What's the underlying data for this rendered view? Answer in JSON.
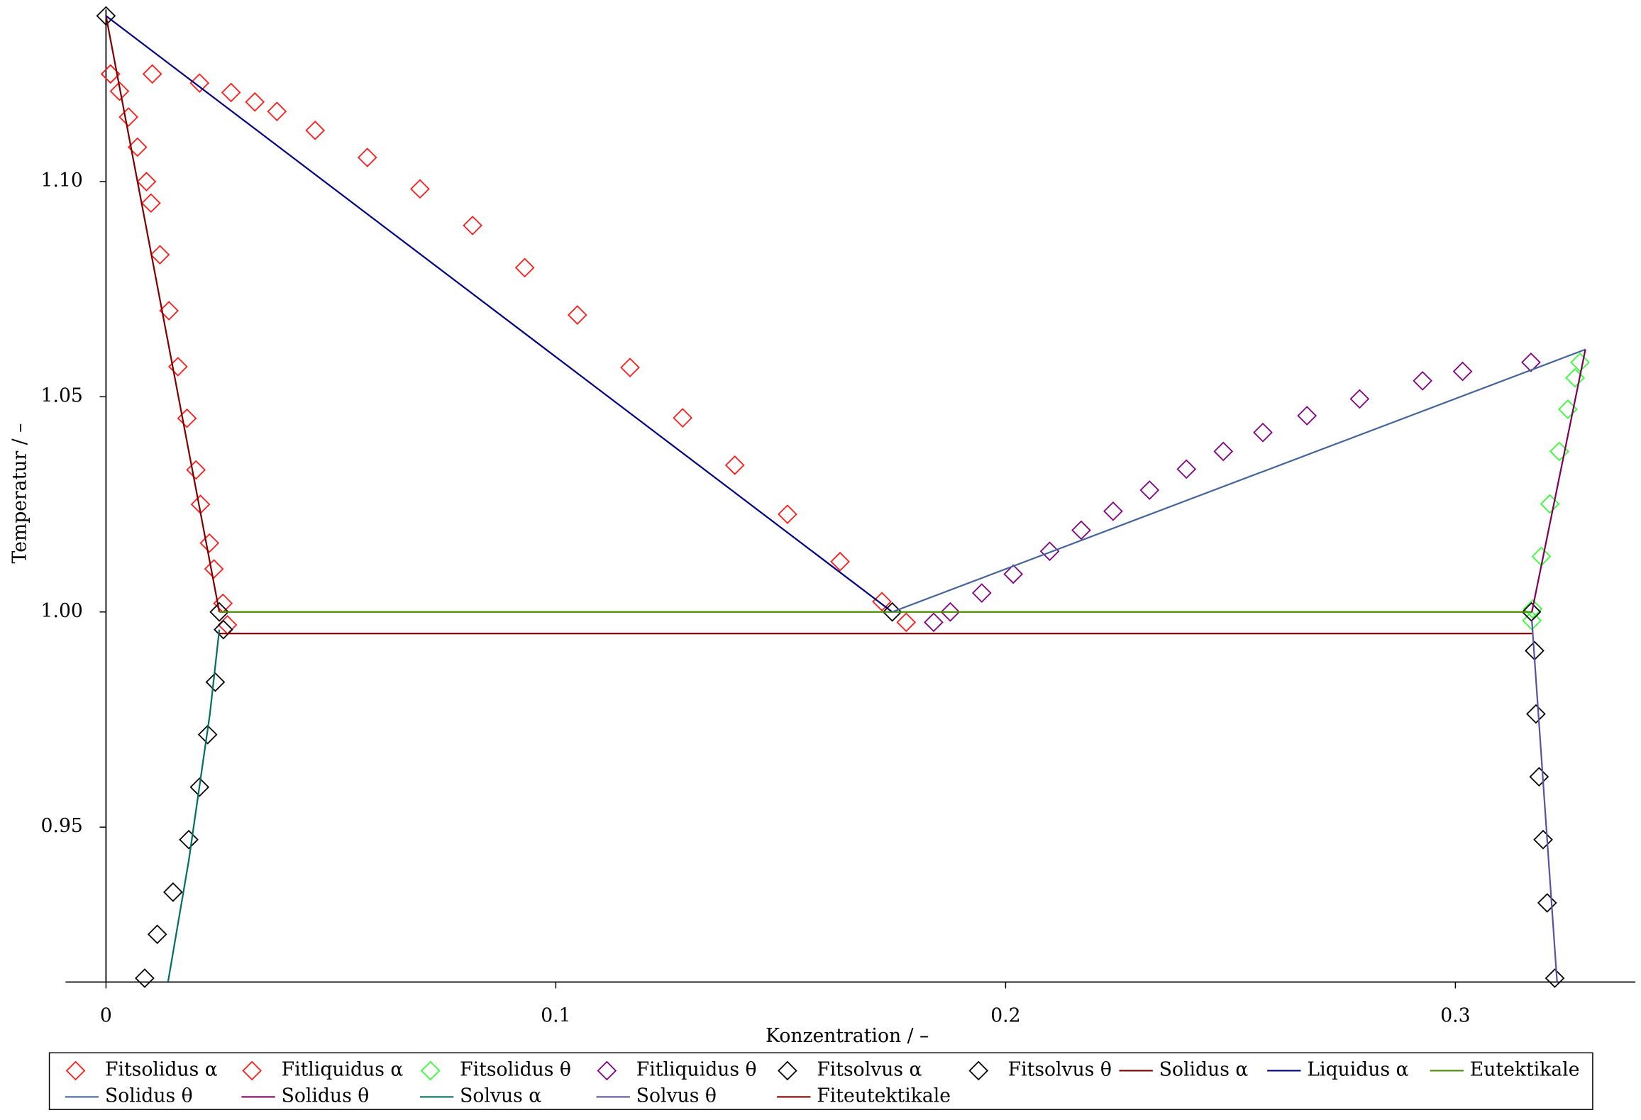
{
  "chart_data": {
    "type": "scatter",
    "xlabel": "Konzentration / –",
    "ylabel": "Temperatur / –",
    "xlim": [
      -0.009,
      0.34
    ],
    "ylim": [
      0.914,
      1.14
    ],
    "xticks": [
      0,
      0.1,
      0.2,
      0.3
    ],
    "yticks": [
      0.95,
      {
        "value": 1,
        "label": "1.00"
      },
      1.05,
      {
        "value": 1.1,
        "label": "1.10"
      }
    ],
    "series": [
      {
        "name": "Fitsolidus α",
        "color": "#ff1a1a",
        "marker": "diamond",
        "x": [
          0.001,
          0.003,
          0.005,
          0.007,
          0.009,
          0.01,
          0.012,
          0.014,
          0.016,
          0.018,
          0.02,
          0.021,
          0.023,
          0.024,
          0.026,
          0.027
        ],
        "y": [
          1.125,
          1.121,
          1.115,
          1.108,
          1.1,
          1.095,
          1.083,
          1.07,
          1.057,
          1.045,
          1.033,
          1.025,
          1.016,
          1.01,
          1.002,
          0.997
        ]
      },
      {
        "name": "Fitliquidus α",
        "color": "#ff1a1a",
        "marker": "diamond",
        "x": [
          0.001,
          0.0103,
          0.0208,
          0.0278,
          0.0331,
          0.038,
          0.0465,
          0.0581,
          0.0698,
          0.0815,
          0.0931,
          0.1048,
          0.1165,
          0.1282,
          0.1398,
          0.1515,
          0.1632,
          0.1725,
          0.1779
        ],
        "y": [
          1.125,
          1.125,
          1.1229,
          1.1207,
          1.1185,
          1.1163,
          1.1119,
          1.1056,
          1.0983,
          1.0898,
          1.08,
          1.069,
          1.0568,
          1.0451,
          1.0341,
          1.0227,
          1.0117,
          1.0024,
          0.9976
        ]
      },
      {
        "name": "Fitsolidus θ",
        "color": "#33ff33",
        "marker": "diamond",
        "x": [
          0.317,
          0.3172,
          0.3191,
          0.321,
          0.3231,
          0.325,
          0.3266,
          0.3277
        ],
        "y": [
          0.998,
          1.0007,
          1.0129,
          1.0251,
          1.0373,
          1.0471,
          1.0544,
          1.058
        ]
      },
      {
        "name": "Fitliquidus θ",
        "color": "#800080",
        "marker": "diamond",
        "x": [
          0.184,
          0.1877,
          0.1947,
          0.2017,
          0.2098,
          0.2168,
          0.2239,
          0.232,
          0.2402,
          0.2484,
          0.2572,
          0.267,
          0.2787,
          0.2927,
          0.3016,
          0.3168
        ],
        "y": [
          0.9976,
          1.0,
          1.0044,
          1.0088,
          1.0141,
          1.019,
          1.0234,
          1.0283,
          1.0332,
          1.0373,
          1.0417,
          1.0456,
          1.0495,
          1.0537,
          1.0559,
          1.058
        ]
      },
      {
        "name": "Fitsolvus α",
        "color": "#000000",
        "marker": "diamond",
        "x": [
          0,
          0.1748,
          0.0252,
          0.0261,
          0.0243,
          0.0226,
          0.0208,
          0.0184,
          0.0149,
          0.0114,
          0.0086
        ],
        "y": [
          1.1385,
          1.0,
          1.0,
          0.9959,
          0.9837,
          0.9715,
          0.9593,
          0.9471,
          0.9349,
          0.9251,
          0.9149
        ]
      },
      {
        "name": "Fitsolvus θ",
        "color": "#000000",
        "marker": "diamond",
        "x": [
          0.3169,
          0.3176,
          0.3179,
          0.3186,
          0.3195,
          0.3204,
          0.3221
        ],
        "y": [
          1.0,
          0.991,
          0.9763,
          0.9617,
          0.9471,
          0.9324,
          0.9149
        ]
      },
      {
        "name": "Solidus α",
        "color": "#800000",
        "marker": "line",
        "x": [
          0,
          0.0252
        ],
        "y": [
          1.1385,
          1.0
        ]
      },
      {
        "name": "Liquidus α",
        "color": "#000080",
        "marker": "line",
        "x": [
          0,
          0.1748
        ],
        "y": [
          1.1385,
          1.0
        ]
      },
      {
        "name": "Eutektikale",
        "color": "#4b8c00",
        "marker": "line",
        "x": [
          0.0252,
          0.317
        ],
        "y": [
          1.0,
          1.0
        ]
      },
      {
        "name": "Solidus θ",
        "color": "#45659a",
        "marker": "line",
        "x": [
          0.1748,
          0.3289
        ],
        "y": [
          1.0,
          1.061
        ]
      },
      {
        "name": "Solidus θ",
        "color": "#800060",
        "marker": "line",
        "x": [
          0.317,
          0.3289
        ],
        "y": [
          1.0,
          1.061
        ]
      },
      {
        "name": "Solvus α",
        "color": "#007060",
        "marker": "line",
        "x": [
          0.0138,
          0.0184,
          0.0231,
          0.0252
        ],
        "y": [
          0.9141,
          0.9422,
          0.9763,
          0.9959
        ]
      },
      {
        "name": "Solvus θ",
        "color": "#6050a0",
        "marker": "line",
        "x": [
          0.317,
          0.3226
        ],
        "y": [
          0.998,
          0.9141
        ]
      },
      {
        "name": "Fiteutektikale",
        "color": "#800000",
        "marker": "line",
        "x": [
          0.0252,
          0.317
        ],
        "y": [
          0.995,
          0.995
        ]
      }
    ]
  }
}
